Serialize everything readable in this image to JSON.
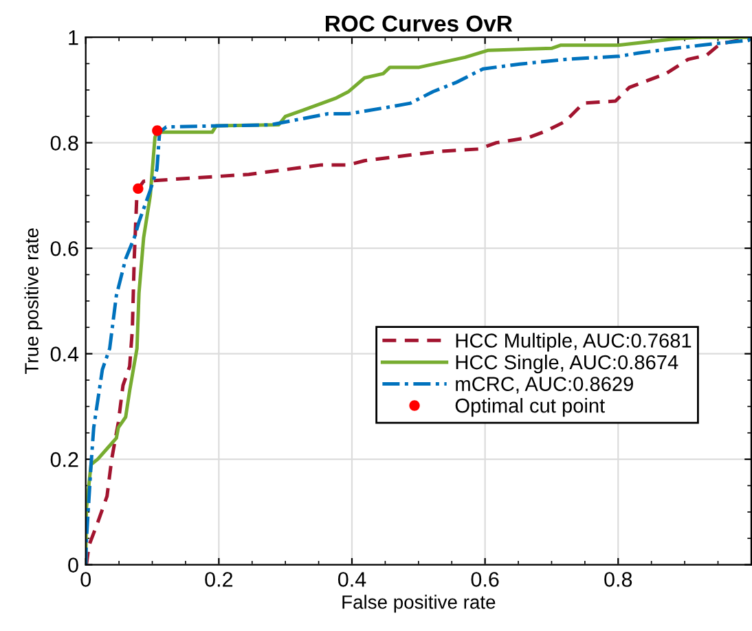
{
  "chart_data": {
    "type": "line",
    "title": "ROC Curves OvR",
    "xlabel": "False positive rate",
    "ylabel": "True positive rate",
    "xlim": [
      0,
      1
    ],
    "ylim": [
      0,
      1
    ],
    "xticks": [
      0,
      0.2,
      0.4,
      0.6,
      0.8
    ],
    "yticks": [
      0,
      0.2,
      0.4,
      0.6,
      0.8,
      1
    ],
    "grid": true,
    "legend": "center right",
    "marker": "none",
    "series": [
      {
        "name": "HCC Multiple, AUC:0.7681",
        "color": "#a2142f",
        "line_style": "dashed",
        "x": [
          0,
          0.001,
          0.005,
          0.018,
          0.032,
          0.039,
          0.049,
          0.056,
          0.066,
          0.07,
          0.073,
          0.077,
          0.079,
          0.087,
          0.245,
          0.354,
          0.395,
          0.419,
          0.535,
          0.59,
          0.617,
          0.666,
          0.693,
          0.72,
          0.748,
          0.796,
          0.817,
          0.872,
          0.905,
          0.933,
          0.954,
          0.995,
          1
        ],
        "values": [
          0,
          0,
          0.037,
          0.08,
          0.13,
          0.2,
          0.27,
          0.34,
          0.376,
          0.445,
          0.584,
          0.706,
          0.713,
          0.727,
          0.74,
          0.758,
          0.758,
          0.766,
          0.784,
          0.788,
          0.8,
          0.81,
          0.823,
          0.84,
          0.875,
          0.879,
          0.905,
          0.931,
          0.958,
          0.966,
          0.988,
          0.997,
          1
        ]
      },
      {
        "name": "HCC Single, AUC:0.8674",
        "color": "#77ac30",
        "line_style": "solid",
        "x": [
          0,
          0.001,
          0.008,
          0.018,
          0.032,
          0.046,
          0.049,
          0.06,
          0.066,
          0.077,
          0.08,
          0.087,
          0.097,
          0.104,
          0.108,
          0.111,
          0.19,
          0.196,
          0.29,
          0.3,
          0.327,
          0.375,
          0.395,
          0.419,
          0.447,
          0.457,
          0.501,
          0.57,
          0.604,
          0.7,
          0.714,
          0.8,
          0.885,
          0.926,
          1
        ],
        "values": [
          0,
          0.107,
          0.19,
          0.2,
          0.22,
          0.24,
          0.26,
          0.28,
          0.33,
          0.41,
          0.515,
          0.62,
          0.7,
          0.81,
          0.823,
          0.82,
          0.82,
          0.832,
          0.834,
          0.85,
          0.862,
          0.884,
          0.897,
          0.923,
          0.931,
          0.943,
          0.943,
          0.962,
          0.975,
          0.979,
          0.985,
          0.985,
          0.997,
          1,
          1
        ]
      },
      {
        "name": "mCRC, AUC:0.8629",
        "color": "#0072bd",
        "line_style": "dashdot",
        "x": [
          0,
          0.001,
          0.008,
          0.012,
          0.025,
          0.036,
          0.046,
          0.06,
          0.073,
          0.08,
          0.097,
          0.107,
          0.111,
          0.121,
          0.278,
          0.364,
          0.395,
          0.453,
          0.488,
          0.522,
          0.556,
          0.597,
          0.652,
          0.72,
          0.802,
          0.83,
          0.885,
          0.946,
          0.996,
          1
        ],
        "values": [
          0,
          0.047,
          0.19,
          0.26,
          0.37,
          0.41,
          0.51,
          0.58,
          0.62,
          0.65,
          0.71,
          0.75,
          0.82,
          0.83,
          0.834,
          0.855,
          0.855,
          0.867,
          0.875,
          0.897,
          0.914,
          0.94,
          0.949,
          0.958,
          0.964,
          0.97,
          0.979,
          0.988,
          0.994,
          1
        ]
      },
      {
        "name": "Optimal cut point",
        "type": "scatter",
        "color": "#ff0000",
        "marker": "circle",
        "x": [
          0.0787,
          0.1075
        ],
        "values": [
          0.713,
          0.823
        ]
      }
    ]
  }
}
